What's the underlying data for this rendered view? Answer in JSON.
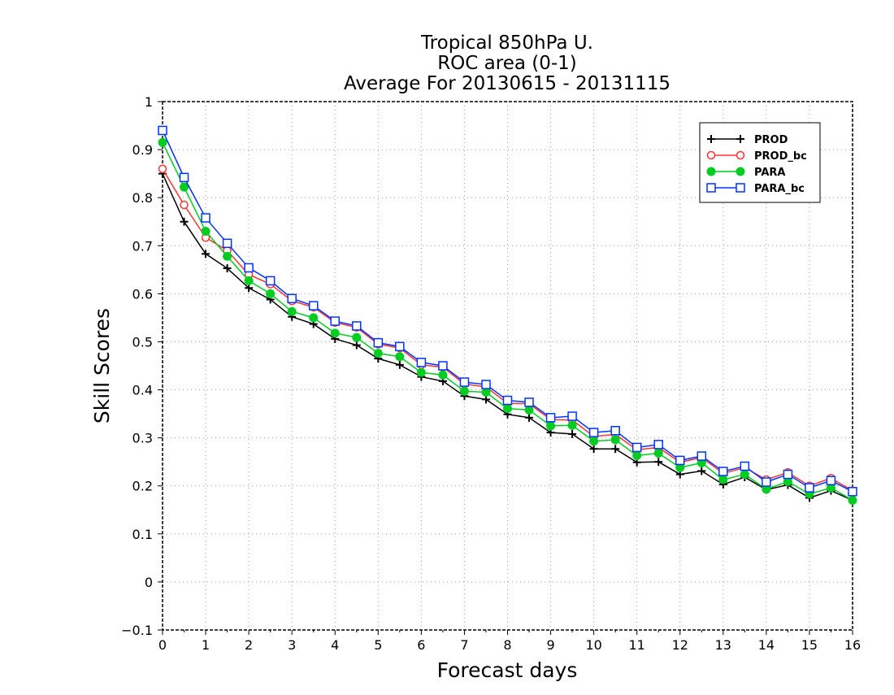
{
  "chart_data": {
    "type": "line",
    "title": [
      "Tropical 850hPa U.",
      "ROC area (0-1)",
      "Average For 20130615 - 20131115"
    ],
    "xlabel": "Forecast days",
    "ylabel": "Skill Scores",
    "xlim": [
      0,
      16
    ],
    "ylim": [
      -0.1,
      1
    ],
    "xticks": [
      0,
      1,
      2,
      3,
      4,
      5,
      6,
      7,
      8,
      9,
      10,
      11,
      12,
      13,
      14,
      15,
      16
    ],
    "yticks": [
      -0.1,
      0,
      0.1,
      0.2,
      0.3,
      0.4,
      0.5,
      0.6,
      0.7,
      0.8,
      0.9,
      1
    ],
    "ytick_labels": [
      "−0.1",
      "0",
      "0.1",
      "0.2",
      "0.3",
      "0.4",
      "0.5",
      "0.6",
      "0.7",
      "0.8",
      "0.9",
      "1"
    ],
    "grid": true,
    "legend_position": "top-right",
    "x": [
      0,
      0.5,
      1,
      1.5,
      2,
      2.5,
      3,
      3.5,
      4,
      4.5,
      5,
      5.5,
      6,
      6.5,
      7,
      7.5,
      8,
      8.5,
      9,
      9.5,
      10,
      10.5,
      11,
      11.5,
      12,
      12.5,
      13,
      13.5,
      14,
      14.5,
      15,
      15.5,
      16
    ],
    "series": [
      {
        "name": "PROD",
        "color": "#000000",
        "marker": "plus",
        "values": [
          0.85,
          0.75,
          0.683,
          0.653,
          0.612,
          0.588,
          0.552,
          0.537,
          0.506,
          0.493,
          0.465,
          0.452,
          0.427,
          0.418,
          0.387,
          0.38,
          0.349,
          0.342,
          0.311,
          0.308,
          0.277,
          0.277,
          0.249,
          0.25,
          0.224,
          0.231,
          0.203,
          0.218,
          0.192,
          0.202,
          0.175,
          0.19,
          0.17
        ]
      },
      {
        "name": "PROD_bc",
        "color": "#ff3333",
        "marker": "circle-open",
        "values": [
          0.86,
          0.785,
          0.717,
          0.69,
          0.64,
          0.62,
          0.585,
          0.572,
          0.54,
          0.53,
          0.495,
          0.487,
          0.452,
          0.447,
          0.412,
          0.406,
          0.372,
          0.371,
          0.338,
          0.337,
          0.303,
          0.307,
          0.275,
          0.28,
          0.249,
          0.259,
          0.226,
          0.238,
          0.213,
          0.228,
          0.2,
          0.216,
          0.19
        ]
      },
      {
        "name": "PARA",
        "color": "#00cc22",
        "marker": "circle-filled",
        "values": [
          0.915,
          0.822,
          0.73,
          0.678,
          0.627,
          0.6,
          0.563,
          0.55,
          0.518,
          0.509,
          0.476,
          0.469,
          0.436,
          0.431,
          0.397,
          0.395,
          0.361,
          0.358,
          0.325,
          0.326,
          0.293,
          0.296,
          0.263,
          0.268,
          0.238,
          0.248,
          0.213,
          0.224,
          0.193,
          0.209,
          0.183,
          0.196,
          0.17
        ]
      },
      {
        "name": "PARA_bc",
        "color": "#0033ff",
        "marker": "square-open",
        "values": [
          0.94,
          0.842,
          0.758,
          0.705,
          0.654,
          0.627,
          0.59,
          0.575,
          0.543,
          0.533,
          0.498,
          0.49,
          0.457,
          0.45,
          0.416,
          0.411,
          0.378,
          0.374,
          0.342,
          0.345,
          0.311,
          0.315,
          0.28,
          0.286,
          0.253,
          0.262,
          0.23,
          0.241,
          0.208,
          0.224,
          0.196,
          0.211,
          0.188
        ]
      }
    ]
  }
}
